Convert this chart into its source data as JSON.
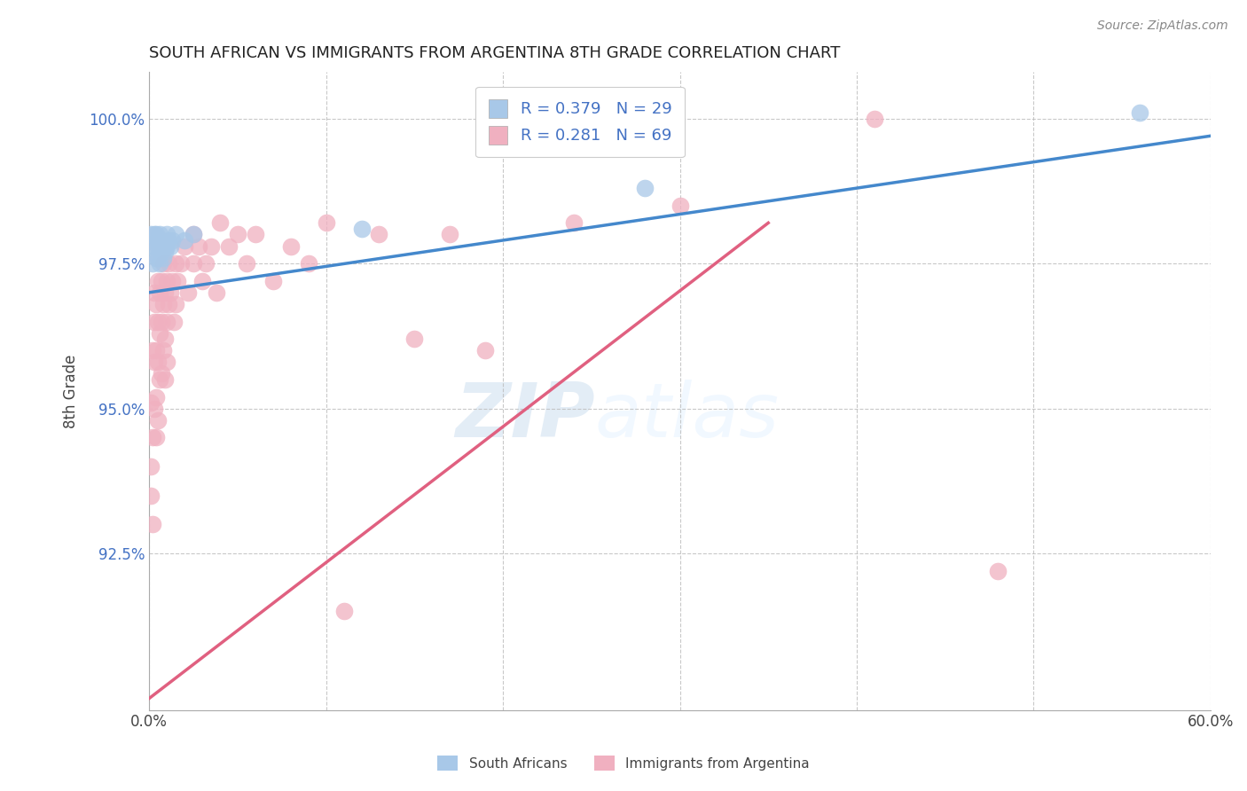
{
  "title": "SOUTH AFRICAN VS IMMIGRANTS FROM ARGENTINA 8TH GRADE CORRELATION CHART",
  "source": "Source: ZipAtlas.com",
  "ylabel": "8th Grade",
  "x_min": 0.0,
  "x_max": 0.6,
  "y_min": 0.898,
  "y_max": 1.008,
  "x_ticks": [
    0.0,
    0.1,
    0.2,
    0.3,
    0.4,
    0.5,
    0.6
  ],
  "x_tick_labels": [
    "0.0%",
    "",
    "",
    "",
    "",
    "",
    "60.0%"
  ],
  "y_ticks": [
    0.925,
    0.95,
    0.975,
    1.0
  ],
  "y_tick_labels": [
    "92.5%",
    "95.0%",
    "97.5%",
    "100.0%"
  ],
  "r_blue": 0.379,
  "n_blue": 29,
  "r_pink": 0.281,
  "n_pink": 69,
  "blue_color": "#a8c8e8",
  "pink_color": "#f0b0c0",
  "blue_line_color": "#4488cc",
  "pink_line_color": "#e06080",
  "watermark_zip": "ZIP",
  "watermark_atlas": "atlas",
  "legend_label_blue": "South Africans",
  "legend_label_pink": "Immigrants from Argentina",
  "blue_line_x": [
    0.0,
    0.6
  ],
  "blue_line_y": [
    0.97,
    0.997
  ],
  "pink_line_x": [
    0.0,
    0.35
  ],
  "pink_line_y": [
    0.9,
    0.982
  ],
  "blue_scatter_x": [
    0.001,
    0.002,
    0.002,
    0.003,
    0.003,
    0.004,
    0.004,
    0.005,
    0.005,
    0.005,
    0.006,
    0.006,
    0.006,
    0.007,
    0.007,
    0.008,
    0.008,
    0.009,
    0.01,
    0.01,
    0.011,
    0.012,
    0.013,
    0.015,
    0.02,
    0.025,
    0.12,
    0.28,
    0.56
  ],
  "blue_scatter_y": [
    0.98,
    0.978,
    0.975,
    0.98,
    0.978,
    0.98,
    0.976,
    0.979,
    0.978,
    0.976,
    0.98,
    0.978,
    0.975,
    0.979,
    0.977,
    0.978,
    0.976,
    0.977,
    0.98,
    0.978,
    0.979,
    0.978,
    0.979,
    0.98,
    0.979,
    0.98,
    0.981,
    0.988,
    1.001
  ],
  "pink_scatter_x": [
    0.001,
    0.001,
    0.001,
    0.002,
    0.002,
    0.002,
    0.003,
    0.003,
    0.003,
    0.003,
    0.004,
    0.004,
    0.004,
    0.004,
    0.005,
    0.005,
    0.005,
    0.005,
    0.006,
    0.006,
    0.006,
    0.007,
    0.007,
    0.007,
    0.008,
    0.008,
    0.008,
    0.009,
    0.009,
    0.009,
    0.01,
    0.01,
    0.01,
    0.011,
    0.011,
    0.012,
    0.013,
    0.014,
    0.015,
    0.015,
    0.016,
    0.018,
    0.02,
    0.022,
    0.025,
    0.025,
    0.028,
    0.03,
    0.032,
    0.035,
    0.038,
    0.04,
    0.045,
    0.05,
    0.055,
    0.06,
    0.07,
    0.08,
    0.09,
    0.1,
    0.11,
    0.13,
    0.15,
    0.17,
    0.19,
    0.24,
    0.3,
    0.41,
    0.48
  ],
  "pink_scatter_y": [
    0.951,
    0.94,
    0.935,
    0.96,
    0.945,
    0.93,
    0.97,
    0.965,
    0.958,
    0.95,
    0.968,
    0.96,
    0.952,
    0.945,
    0.972,
    0.965,
    0.958,
    0.948,
    0.97,
    0.963,
    0.955,
    0.972,
    0.965,
    0.956,
    0.975,
    0.968,
    0.96,
    0.97,
    0.962,
    0.955,
    0.972,
    0.965,
    0.958,
    0.975,
    0.968,
    0.97,
    0.972,
    0.965,
    0.975,
    0.968,
    0.972,
    0.975,
    0.978,
    0.97,
    0.98,
    0.975,
    0.978,
    0.972,
    0.975,
    0.978,
    0.97,
    0.982,
    0.978,
    0.98,
    0.975,
    0.98,
    0.972,
    0.978,
    0.975,
    0.982,
    0.915,
    0.98,
    0.962,
    0.98,
    0.96,
    0.982,
    0.985,
    1.0,
    0.922
  ]
}
